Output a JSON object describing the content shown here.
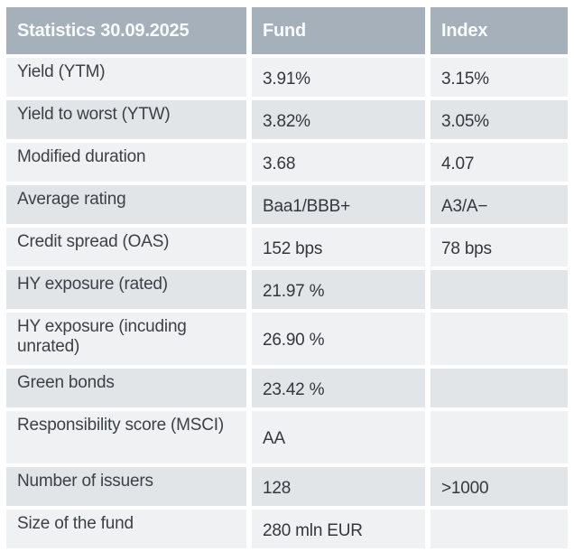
{
  "table": {
    "header": {
      "title": "Statistics 30.09.2025",
      "fund_col": "Fund",
      "index_col": "Index"
    },
    "rows": [
      {
        "label": "Yield (YTM)",
        "fund": "3.91%",
        "index": "3.15%"
      },
      {
        "label": "Yield to worst (YTW)",
        "fund": "3.82%",
        "index": "3.05%"
      },
      {
        "label": "Modified duration",
        "fund": "3.68",
        "index": "4.07"
      },
      {
        "label": "Average rating",
        "fund": "Baa1/BBB+",
        "index": "A3/A−"
      },
      {
        "label": "Credit spread (OAS)",
        "fund": "152 bps",
        "index": "78 bps"
      },
      {
        "label": "HY exposure (rated)",
        "fund": "21.97 %",
        "index": ""
      },
      {
        "label": "HY exposure (incuding unrated)",
        "fund": "26.90 %",
        "index": ""
      },
      {
        "label": "Green bonds",
        "fund": "23.42 %",
        "index": ""
      },
      {
        "label": "Responsibility score (MSCI)",
        "fund": "AA",
        "index": ""
      },
      {
        "label": "Number of issuers",
        "fund": "128",
        "index": ">1000"
      },
      {
        "label": "Size of the fund",
        "fund": "280 mln EUR",
        "index": ""
      }
    ]
  },
  "colors": {
    "header_bg": "#a6b0ba",
    "row_dark": "#e1e5e8",
    "row_light": "#eff1f3",
    "label_text": "#3c4148",
    "value_text": "#34383e",
    "header_text": "#fafbfc",
    "page_bg": "#ffffff"
  }
}
